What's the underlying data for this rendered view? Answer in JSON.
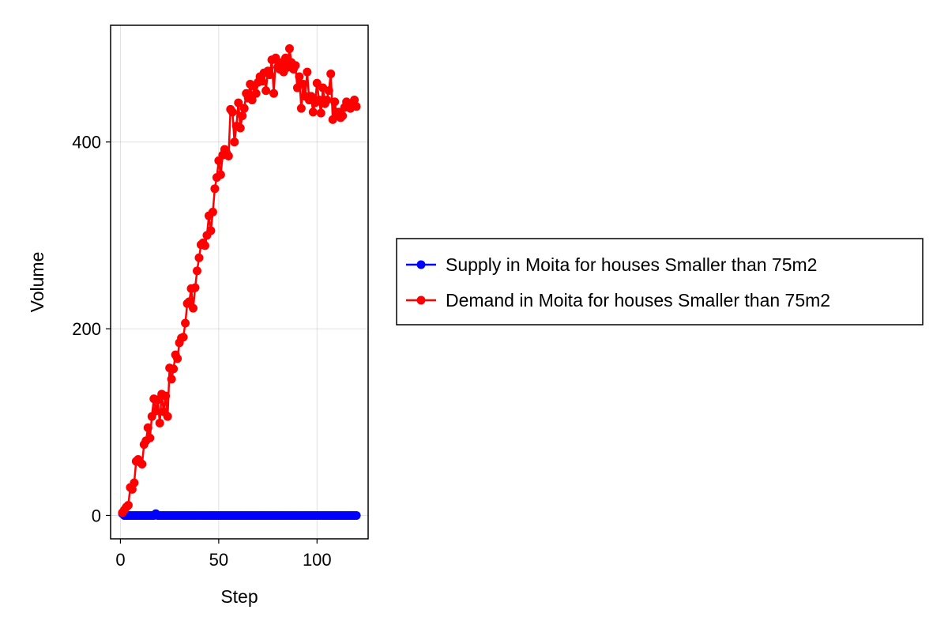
{
  "chart_data": {
    "type": "line",
    "title": "",
    "xlabel": "Step",
    "ylabel": "Volume",
    "xlim": [
      -5,
      126
    ],
    "ylim": [
      -25,
      525
    ],
    "xticks": [
      0,
      50,
      100
    ],
    "yticks": [
      0,
      200,
      400
    ],
    "grid": true,
    "legend_position": "right",
    "series": [
      {
        "name": "Supply in Moita for houses Smaller than 75m2",
        "color": "#0000ff",
        "marker": "circle",
        "x": [
          1,
          2,
          3,
          4,
          5,
          6,
          7,
          8,
          9,
          10,
          11,
          12,
          13,
          14,
          15,
          16,
          17,
          18,
          19,
          20,
          21,
          22,
          23,
          24,
          25,
          26,
          27,
          28,
          29,
          30,
          31,
          32,
          33,
          34,
          35,
          36,
          37,
          38,
          39,
          40,
          41,
          42,
          43,
          44,
          45,
          46,
          47,
          48,
          49,
          50,
          51,
          52,
          53,
          54,
          55,
          56,
          57,
          58,
          59,
          60,
          61,
          62,
          63,
          64,
          65,
          66,
          67,
          68,
          69,
          70,
          71,
          72,
          73,
          74,
          75,
          76,
          77,
          78,
          79,
          80,
          81,
          82,
          83,
          84,
          85,
          86,
          87,
          88,
          89,
          90,
          91,
          92,
          93,
          94,
          95,
          96,
          97,
          98,
          99,
          100,
          101,
          102,
          103,
          104,
          105,
          106,
          107,
          108,
          109,
          110,
          111,
          112,
          113,
          114,
          115,
          116,
          117,
          118,
          119,
          120
        ],
        "y": [
          2,
          0,
          0,
          0,
          0,
          0,
          0,
          0,
          0,
          0,
          0,
          0,
          0,
          0,
          0,
          0,
          0,
          2,
          0,
          0,
          0,
          0,
          0,
          0,
          0,
          0,
          0,
          0,
          0,
          0,
          0,
          0,
          0,
          0,
          0,
          0,
          0,
          0,
          0,
          0,
          0,
          0,
          0,
          0,
          0,
          0,
          0,
          0,
          0,
          0,
          0,
          0,
          0,
          0,
          0,
          0,
          0,
          0,
          0,
          0,
          0,
          0,
          0,
          0,
          0,
          0,
          0,
          0,
          0,
          0,
          0,
          0,
          0,
          0,
          0,
          0,
          0,
          0,
          0,
          0,
          0,
          0,
          0,
          0,
          0,
          0,
          0,
          0,
          0,
          0,
          0,
          0,
          0,
          0,
          0,
          0,
          0,
          0,
          0,
          0,
          0,
          0,
          0,
          0,
          0,
          0,
          0,
          0,
          0,
          0,
          0,
          0,
          0,
          0,
          0,
          0,
          0,
          0,
          0,
          0
        ]
      },
      {
        "name": "Demand in Moita for houses Smaller than 75m2",
        "color": "#ff0000",
        "marker": "circle",
        "x": [
          1,
          2,
          3,
          4,
          5,
          6,
          7,
          8,
          9,
          10,
          11,
          12,
          13,
          14,
          15,
          16,
          17,
          18,
          19,
          20,
          21,
          22,
          23,
          24,
          25,
          26,
          27,
          28,
          29,
          30,
          31,
          32,
          33,
          34,
          35,
          36,
          37,
          38,
          39,
          40,
          41,
          42,
          43,
          44,
          45,
          46,
          47,
          48,
          49,
          50,
          51,
          52,
          53,
          54,
          55,
          56,
          57,
          58,
          59,
          60,
          61,
          62,
          63,
          64,
          65,
          66,
          67,
          68,
          69,
          70,
          71,
          72,
          73,
          74,
          75,
          76,
          77,
          78,
          79,
          80,
          81,
          82,
          83,
          84,
          85,
          86,
          87,
          88,
          89,
          90,
          91,
          92,
          93,
          94,
          95,
          96,
          97,
          98,
          99,
          100,
          101,
          102,
          103,
          104,
          105,
          106,
          107,
          108,
          109,
          110,
          111,
          112,
          113,
          114,
          115,
          116,
          117,
          118,
          119,
          120
        ],
        "y": [
          3,
          6,
          9,
          11,
          30,
          28,
          35,
          58,
          60,
          57,
          55,
          76,
          80,
          94,
          83,
          106,
          125,
          112,
          124,
          99,
          130,
          111,
          128,
          106,
          158,
          146,
          157,
          172,
          168,
          185,
          190,
          191,
          206,
          227,
          229,
          243,
          222,
          244,
          262,
          276,
          290,
          292,
          289,
          300,
          321,
          305,
          325,
          350,
          362,
          380,
          365,
          386,
          392,
          388,
          385,
          435,
          432,
          400,
          417,
          442,
          415,
          428,
          436,
          452,
          447,
          462,
          445,
          460,
          452,
          464,
          470,
          465,
          474,
          455,
          476,
          472,
          488,
          452,
          490,
          480,
          478,
          485,
          475,
          490,
          480,
          500,
          485,
          478,
          482,
          458,
          470,
          436,
          462,
          449,
          475,
          445,
          449,
          432,
          442,
          463,
          445,
          431,
          458,
          441,
          445,
          455,
          473,
          424,
          443,
          430,
          432,
          426,
          428,
          437,
          443,
          438,
          436,
          440,
          445,
          438
        ]
      }
    ]
  }
}
